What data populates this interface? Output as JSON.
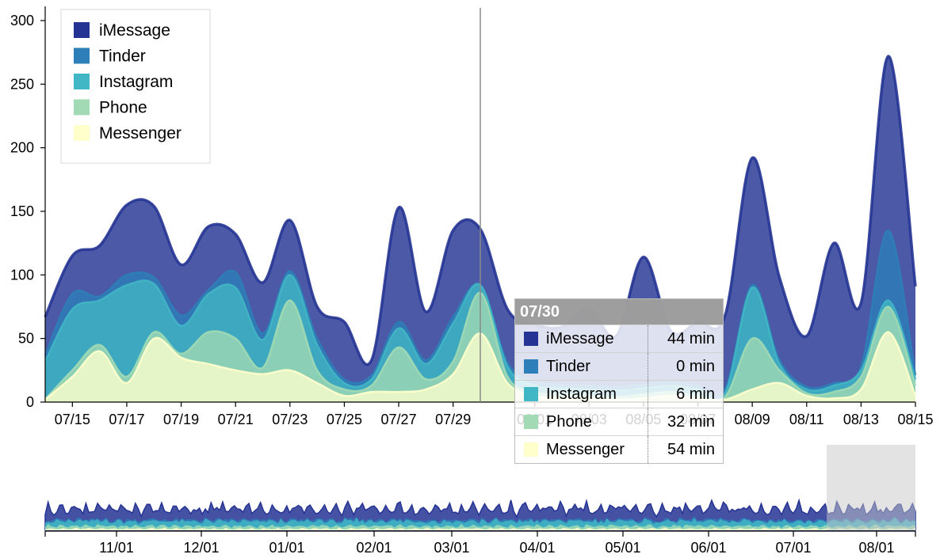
{
  "chart_data": {
    "type": "area",
    "stacked": true,
    "unit": "min",
    "y_ticks": [
      "0",
      "50",
      "100",
      "150",
      "200",
      "250",
      "300"
    ],
    "ylim": [
      0,
      300
    ],
    "x_ticks": [
      "07/15",
      "07/17",
      "07/19",
      "07/21",
      "07/23",
      "07/25",
      "07/27",
      "07/29",
      "08/01",
      "08/03",
      "08/05",
      "08/07",
      "08/09",
      "08/11",
      "08/13",
      "08/15"
    ],
    "x": [
      "07/14",
      "07/15",
      "07/16",
      "07/17",
      "07/18",
      "07/19",
      "07/20",
      "07/21",
      "07/22",
      "07/23",
      "07/24",
      "07/25",
      "07/26",
      "07/27",
      "07/28",
      "07/29",
      "07/30",
      "07/31",
      "08/01",
      "08/02",
      "08/03",
      "08/04",
      "08/05",
      "08/06",
      "08/07",
      "08/08",
      "08/09",
      "08/10",
      "08/11",
      "08/12",
      "08/13",
      "08/14",
      "08/15"
    ],
    "series": [
      {
        "name": "Messenger",
        "color": "#ffffcc",
        "values": [
          2,
          20,
          40,
          15,
          50,
          35,
          30,
          25,
          22,
          25,
          15,
          5,
          8,
          8,
          10,
          22,
          54,
          15,
          5,
          3,
          3,
          2,
          3,
          5,
          3,
          2,
          10,
          15,
          5,
          3,
          10,
          55,
          5
        ]
      },
      {
        "name": "Phone",
        "color": "#a1dab4",
        "values": [
          0,
          5,
          5,
          5,
          5,
          3,
          25,
          25,
          5,
          55,
          10,
          5,
          5,
          35,
          8,
          10,
          32,
          5,
          3,
          3,
          2,
          2,
          3,
          3,
          2,
          2,
          40,
          10,
          2,
          5,
          10,
          20,
          8
        ]
      },
      {
        "name": "Instagram",
        "color": "#41b6c4",
        "values": [
          30,
          48,
          35,
          72,
          38,
          22,
          30,
          40,
          22,
          20,
          20,
          5,
          5,
          15,
          12,
          30,
          6,
          8,
          5,
          5,
          5,
          5,
          5,
          5,
          5,
          3,
          40,
          5,
          3,
          5,
          5,
          5,
          5
        ]
      },
      {
        "name": "Tinder",
        "color": "#2c7fb8",
        "values": [
          5,
          12,
          3,
          8,
          5,
          8,
          3,
          12,
          5,
          3,
          5,
          3,
          3,
          5,
          3,
          5,
          0,
          3,
          3,
          3,
          3,
          3,
          3,
          3,
          3,
          3,
          2,
          3,
          2,
          2,
          3,
          55,
          3
        ]
      },
      {
        "name": "iMessage",
        "color": "#253494",
        "values": [
          30,
          30,
          40,
          55,
          56,
          40,
          50,
          30,
          40,
          40,
          25,
          45,
          12,
          90,
          38,
          68,
          44,
          42,
          45,
          45,
          60,
          40,
          100,
          40,
          50,
          58,
          100,
          65,
          40,
          110,
          50,
          137,
          70
        ]
      }
    ],
    "legend": [
      "iMessage",
      "Tinder",
      "Instagram",
      "Phone",
      "Messenger"
    ],
    "legend_position": "top-left",
    "hover_date": "07/30",
    "overview": {
      "x_ticks": [
        "11/01",
        "12/01",
        "01/01",
        "02/01",
        "03/01",
        "04/01",
        "05/01",
        "06/01",
        "07/01",
        "08/01"
      ],
      "brush_range": [
        "07/14",
        "08/15"
      ]
    }
  },
  "tooltip": {
    "title": "07/30",
    "rows": [
      {
        "name": "iMessage",
        "value": "44 min",
        "color": "#253494"
      },
      {
        "name": "Tinder",
        "value": "0 min",
        "color": "#2c7fb8"
      },
      {
        "name": "Instagram",
        "value": "6 min",
        "color": "#41b6c4"
      },
      {
        "name": "Phone",
        "value": "32 min",
        "color": "#a1dab4"
      },
      {
        "name": "Messenger",
        "value": "54 min",
        "color": "#ffffcc"
      }
    ]
  }
}
